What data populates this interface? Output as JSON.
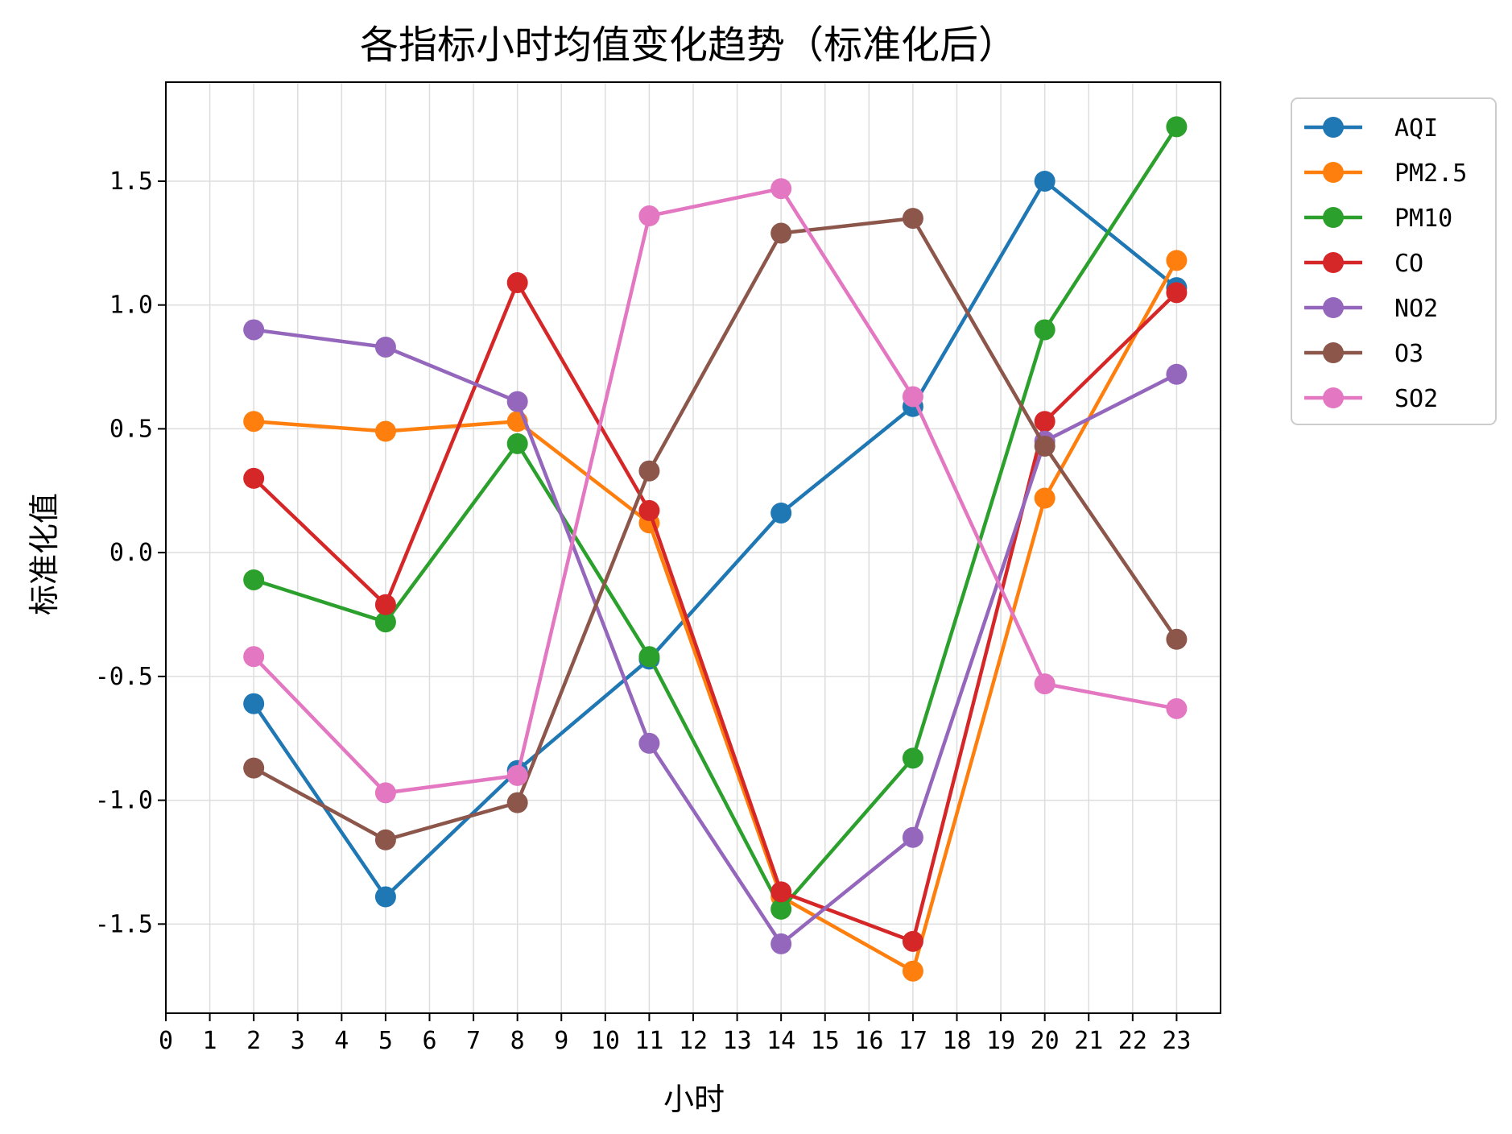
{
  "chart_data": {
    "type": "line",
    "title": "各指标小时均值变化趋势（标准化后）",
    "xlabel": "小时",
    "ylabel": "标准化值",
    "x": [
      2,
      5,
      8,
      11,
      14,
      17,
      20,
      23
    ],
    "xticks": [
      "0",
      "1",
      "2",
      "3",
      "4",
      "5",
      "6",
      "7",
      "8",
      "9",
      "10",
      "11",
      "12",
      "13",
      "14",
      "15",
      "16",
      "17",
      "18",
      "19",
      "20",
      "21",
      "22",
      "23"
    ],
    "yticks": [
      "-1.5",
      "-1.0",
      "-0.5",
      "0.0",
      "0.5",
      "1.0",
      "1.5"
    ],
    "ytick_values": [
      -1.5,
      -1.0,
      -0.5,
      0.0,
      0.5,
      1.0,
      1.5
    ],
    "xlim": [
      0,
      24
    ],
    "ylim": [
      -1.86,
      1.9
    ],
    "grid": true,
    "legend_position": "outside-top-right",
    "series": [
      {
        "name": "AQI",
        "color": "#1f77b4",
        "values": [
          -0.61,
          -1.39,
          -0.88,
          -0.43,
          0.16,
          0.59,
          1.5,
          1.07
        ]
      },
      {
        "name": "PM2.5",
        "color": "#ff7f0e",
        "values": [
          0.53,
          0.49,
          0.53,
          0.12,
          -1.39,
          -1.69,
          0.22,
          1.18
        ]
      },
      {
        "name": "PM10",
        "color": "#2ca02c",
        "values": [
          -0.11,
          -0.28,
          0.44,
          -0.42,
          -1.44,
          -0.83,
          0.9,
          1.72
        ]
      },
      {
        "name": "CO",
        "color": "#d62728",
        "values": [
          0.3,
          -0.21,
          1.09,
          0.17,
          -1.37,
          -1.57,
          0.53,
          1.05
        ]
      },
      {
        "name": "NO2",
        "color": "#9467bd",
        "values": [
          0.9,
          0.83,
          0.61,
          -0.77,
          -1.58,
          -1.15,
          0.45,
          0.72
        ]
      },
      {
        "name": "O3",
        "color": "#8c564b",
        "values": [
          -0.87,
          -1.16,
          -1.01,
          0.33,
          1.29,
          1.35,
          0.43,
          -0.35
        ]
      },
      {
        "name": "SO2",
        "color": "#e377c2",
        "values": [
          -0.42,
          -0.97,
          -0.9,
          1.36,
          1.47,
          0.63,
          -0.53,
          -0.63
        ]
      }
    ]
  }
}
